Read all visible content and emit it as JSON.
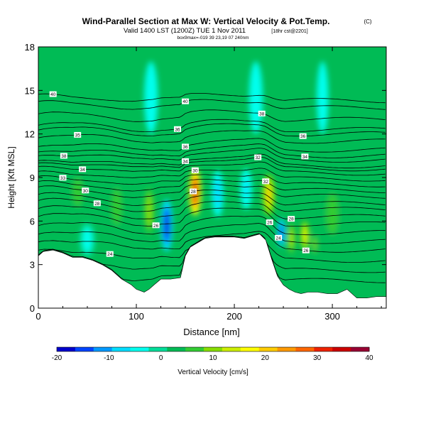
{
  "chart_data": {
    "type": "heatmap",
    "title": "Wind-Parallel Section at Max W: Vertical Velocity & Pot.Temp.",
    "title_mark": "(C)",
    "subtitle": "Valid 1400 LST (1200Z) TUE 1 Nov 2011",
    "subtitle_right": "[18hr cst@2201]",
    "subtitle2": "box9max=-019 39 23,19 07 240nm",
    "xlabel": "Distance [nm]",
    "ylabel": "Height [Kft MSL]",
    "xlim": [
      0,
      355
    ],
    "ylim": [
      0,
      18
    ],
    "xticks": [
      0,
      100,
      200,
      300
    ],
    "yticks": [
      0,
      3,
      6,
      9,
      12,
      15,
      18
    ],
    "colorbar": {
      "label": "Vertical Velocity [cm/s]",
      "ticks": [
        -20,
        -10,
        0,
        10,
        20,
        30,
        40
      ],
      "range": [
        -20,
        40
      ],
      "colors": [
        "#0000cc",
        "#0044ff",
        "#0099ff",
        "#00ddff",
        "#00ffee",
        "#00dd99",
        "#00bb55",
        "#33cc33",
        "#88dd00",
        "#ccee00",
        "#ffff00",
        "#ffcc00",
        "#ff9900",
        "#ff6600",
        "#ee2200",
        "#cc0000",
        "#990033"
      ]
    },
    "background_value": 2,
    "terrain": {
      "x": [
        0,
        5,
        15,
        25,
        35,
        45,
        55,
        65,
        75,
        85,
        95,
        100,
        108,
        113,
        118,
        125,
        135,
        145,
        150,
        155,
        160,
        165,
        170,
        180,
        190,
        200,
        210,
        220,
        226,
        232,
        238,
        244,
        250,
        256,
        262,
        268,
        275,
        285,
        295,
        305,
        315,
        325,
        335,
        345,
        355
      ],
      "y": [
        3.6,
        3.9,
        4.0,
        3.8,
        3.5,
        3.5,
        3.3,
        3.0,
        2.6,
        2.0,
        1.6,
        1.3,
        1.1,
        1.3,
        1.6,
        2.0,
        2.0,
        2.1,
        3.6,
        4.2,
        4.4,
        4.6,
        4.8,
        4.9,
        4.9,
        4.9,
        4.8,
        5.0,
        5.1,
        4.7,
        3.4,
        2.2,
        1.6,
        1.3,
        1.1,
        1.0,
        1.1,
        1.1,
        1.0,
        1.0,
        1.3,
        0.7,
        0.7,
        0.8,
        0.8
      ]
    },
    "cells": [
      {
        "x": 131,
        "y": 5.7,
        "sx": 6,
        "sy": 1.8,
        "v": -18
      },
      {
        "x": 160,
        "y": 8.0,
        "sx": 6,
        "sy": 1.6,
        "v": 36
      },
      {
        "x": 183,
        "y": 7.9,
        "sx": 6,
        "sy": 1.6,
        "v": -9
      },
      {
        "x": 235,
        "y": 7.8,
        "sx": 6,
        "sy": 1.4,
        "v": 19
      },
      {
        "x": 212,
        "y": 8.2,
        "sx": 6,
        "sy": 1.4,
        "v": -6
      },
      {
        "x": 248,
        "y": 5.2,
        "sx": 4,
        "sy": 1.0,
        "v": -13
      },
      {
        "x": 258,
        "y": 4.8,
        "sx": 4,
        "sy": 1.1,
        "v": 14
      },
      {
        "x": 272,
        "y": 5.0,
        "sx": 4,
        "sy": 1.0,
        "v": 18
      },
      {
        "x": 282,
        "y": 4.4,
        "sx": 4,
        "sy": 0.9,
        "v": 9
      },
      {
        "x": 113,
        "y": 6.7,
        "sx": 5,
        "sy": 1.6,
        "v": 11
      },
      {
        "x": 40,
        "y": 8.0,
        "sx": 8,
        "sy": 1.4,
        "v": 8
      },
      {
        "x": 80,
        "y": 7.0,
        "sx": 8,
        "sy": 1.8,
        "v": 7
      },
      {
        "x": 115,
        "y": 14.5,
        "sx": 7,
        "sy": 2.5,
        "v": -5
      },
      {
        "x": 222,
        "y": 14.5,
        "sx": 7,
        "sy": 2.5,
        "v": -5
      },
      {
        "x": 290,
        "y": 14.5,
        "sx": 6,
        "sy": 2.5,
        "v": -5
      },
      {
        "x": 300,
        "y": 6.5,
        "sx": 10,
        "sy": 2.0,
        "v": 6
      },
      {
        "x": 50,
        "y": 4.7,
        "sx": 8,
        "sy": 1.2,
        "v": -3
      }
    ],
    "isentropes": [
      {
        "base": 13.8,
        "label": "40",
        "label_x": 150
      },
      {
        "base": 14.3,
        "label": "40",
        "label_x": 15
      },
      {
        "base": 13.0,
        "label": "38",
        "label_x": 228
      },
      {
        "base": 12.3,
        "label": "36",
        "label_x": 142
      },
      {
        "base": 12.0,
        "label": "36",
        "label_x": 270
      },
      {
        "base": 11.5,
        "label": "35",
        "label_x": 40
      },
      {
        "base": 10.9,
        "label": "36",
        "label_x": 150
      },
      {
        "base": 10.5,
        "label": "34",
        "label_x": 272
      },
      {
        "base": 10.2,
        "label": "38",
        "label_x": 26
      },
      {
        "base": 9.8,
        "label": "34",
        "label_x": 150
      },
      {
        "base": 9.6,
        "label": "32",
        "label_x": 224
      },
      {
        "base": 9.3,
        "label": "34",
        "label_x": 45
      },
      {
        "base": 8.9,
        "label": "30",
        "label_x": 160
      },
      {
        "base": 8.5,
        "label": "33",
        "label_x": 25
      },
      {
        "base": 8.1,
        "label": "32",
        "label_x": 232
      },
      {
        "base": 7.7,
        "label": "30",
        "label_x": 48
      },
      {
        "base": 7.2,
        "label": "28",
        "label_x": 158
      },
      {
        "base": 6.8,
        "label": "28",
        "label_x": 60
      },
      {
        "base": 6.3,
        "label": "28",
        "label_x": 258
      },
      {
        "base": 5.8,
        "label": "26",
        "label_x": 120
      },
      {
        "base": 5.2,
        "label": "26",
        "label_x": 236
      },
      {
        "base": 4.6,
        "label": "24",
        "label_x": 245
      },
      {
        "base": 4.0,
        "label": "26",
        "label_x": 273
      },
      {
        "base": 3.3,
        "label": "24",
        "label_x": 73
      },
      {
        "base": 2.6,
        "label": "",
        "label_x": 0
      },
      {
        "base": 1.9,
        "label": "",
        "label_x": 0
      }
    ]
  }
}
